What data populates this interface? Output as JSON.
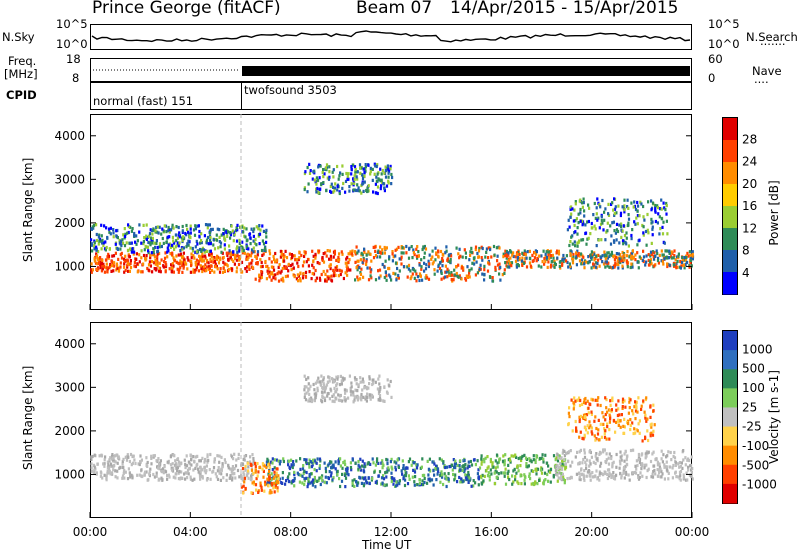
{
  "header": {
    "radar": "Prince George (fitACF)",
    "beam": "Beam 07",
    "dates": "14/Apr/2015 - 15/Apr/2015"
  },
  "top_panels": {
    "nsky_label": "N.Sky",
    "nsearch_label": "N.Search",
    "nsearch_marker": ".......",
    "noise_ticks": [
      "10^5",
      "10^0"
    ],
    "freq_label_1": "Freq.",
    "freq_label_2": "[MHz]",
    "freq_ticks": [
      "18",
      "8"
    ],
    "nave_label": "Nave",
    "nave_marker": "....",
    "nave_ticks": [
      "60",
      "0"
    ],
    "cpid_label": "CPID",
    "cpid_segments": [
      "normal (fast) 151",
      "twofsound 3503"
    ]
  },
  "chart_data": [
    {
      "type": "heatmap",
      "name": "power",
      "ylabel": "Slant Range [km]",
      "ylim": [
        0,
        4500
      ],
      "yticks": [
        "4000",
        "3000",
        "2000",
        "1000"
      ],
      "colorbar_label": "Power [dB]",
      "colorbar_ticks": [
        "28",
        "24",
        "20",
        "16",
        "12",
        "8",
        "4"
      ],
      "colorbar_colors": [
        "#e00000",
        "#ff4000",
        "#ff8c00",
        "#ffcc00",
        "#9acd32",
        "#2e8b57",
        "#1f5faa",
        "#0000ff"
      ],
      "bands": [
        {
          "t0": 0.0,
          "t1": 6.5,
          "r0": 900,
          "r1": 1350,
          "level": "high"
        },
        {
          "t0": 6.5,
          "t1": 10.5,
          "r0": 700,
          "r1": 1400,
          "level": "high"
        },
        {
          "t0": 10.5,
          "t1": 16.5,
          "r0": 700,
          "r1": 1500,
          "level": "mid"
        },
        {
          "t0": 16.5,
          "t1": 24.0,
          "r0": 1000,
          "r1": 1400,
          "level": "mid"
        },
        {
          "t0": 19.0,
          "t1": 23.0,
          "r0": 1500,
          "r1": 2600,
          "level": "low"
        },
        {
          "t0": 8.5,
          "t1": 12.0,
          "r0": 2700,
          "r1": 3400,
          "level": "low"
        },
        {
          "t0": 0.0,
          "t1": 7.0,
          "r0": 1350,
          "r1": 2000,
          "level": "low"
        }
      ]
    },
    {
      "type": "heatmap",
      "name": "velocity",
      "ylabel": "Slant Range [km]",
      "ylim": [
        0,
        4500
      ],
      "yticks": [
        "4000",
        "3000",
        "2000",
        "1000"
      ],
      "colorbar_label": "Velocity [m s-1]",
      "colorbar_ticks": [
        "1000",
        "500",
        "100",
        "25",
        "-25",
        "-100",
        "-500",
        "-1000"
      ],
      "colorbar_colors": [
        "#1f3fbf",
        "#2f6fbf",
        "#2e8b57",
        "#7ccd5a",
        "#c0c0c0",
        "#ffd24a",
        "#ff8c00",
        "#ff4000",
        "#e00000"
      ],
      "bands": [
        {
          "t0": 0.0,
          "t1": 6.5,
          "r0": 900,
          "r1": 1500,
          "level": "grey"
        },
        {
          "t0": 7.0,
          "t1": 15.5,
          "r0": 750,
          "r1": 1400,
          "level": "blue"
        },
        {
          "t0": 15.5,
          "t1": 19.0,
          "r0": 800,
          "r1": 1500,
          "level": "green"
        },
        {
          "t0": 18.5,
          "t1": 24.0,
          "r0": 900,
          "r1": 1600,
          "level": "grey"
        },
        {
          "t0": 19.0,
          "t1": 22.5,
          "r0": 1800,
          "r1": 2800,
          "level": "orange"
        },
        {
          "t0": 8.5,
          "t1": 12.0,
          "r0": 2700,
          "r1": 3300,
          "level": "grey"
        },
        {
          "t0": 6.0,
          "t1": 7.5,
          "r0": 600,
          "r1": 1300,
          "level": "orange"
        }
      ]
    }
  ],
  "xaxis": {
    "ticks": [
      "00:00",
      "04:00",
      "08:00",
      "12:00",
      "16:00",
      "20:00",
      "00:00"
    ],
    "label": "Time UT"
  }
}
